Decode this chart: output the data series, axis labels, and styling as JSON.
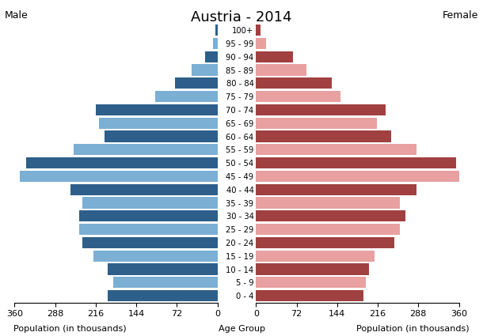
{
  "title": "Austria - 2014",
  "age_groups": [
    "0 - 4",
    "5 - 9",
    "10 - 14",
    "15 - 19",
    "20 - 24",
    "25 - 29",
    "30 - 34",
    "35 - 39",
    "40 - 44",
    "45 - 49",
    "50 - 54",
    "55 - 59",
    "60 - 64",
    "65 - 69",
    "70 - 74",
    "75 - 79",
    "80 - 84",
    "85 - 89",
    "90 - 94",
    "95 - 99",
    "100+"
  ],
  "male": [
    195,
    185,
    195,
    220,
    240,
    245,
    245,
    240,
    260,
    350,
    340,
    255,
    200,
    210,
    215,
    110,
    75,
    45,
    22,
    8,
    3
  ],
  "female": [
    190,
    195,
    200,
    210,
    245,
    255,
    265,
    255,
    285,
    360,
    355,
    285,
    240,
    215,
    230,
    150,
    135,
    90,
    65,
    18,
    8
  ],
  "male_dark_color": "#2d5f8a",
  "male_light_color": "#7bafd4",
  "female_dark_color": "#a04040",
  "female_light_color": "#e8a0a0",
  "xlabel_left": "Population (in thousands)",
  "xlabel_center": "Age Group",
  "xlabel_right": "Population (in thousands)",
  "label_male": "Male",
  "label_female": "Female",
  "xlim": 360,
  "background_color": "#ffffff"
}
